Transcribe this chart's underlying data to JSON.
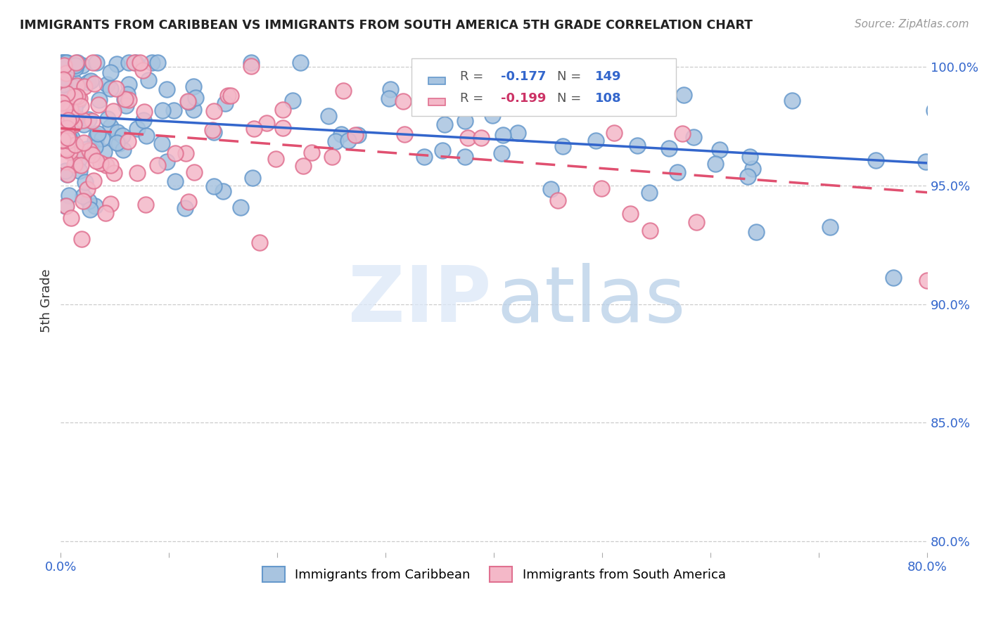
{
  "title": "IMMIGRANTS FROM CARIBBEAN VS IMMIGRANTS FROM SOUTH AMERICA 5TH GRADE CORRELATION CHART",
  "source": "Source: ZipAtlas.com",
  "ylabel": "5th Grade",
  "xlim": [
    0.0,
    0.8
  ],
  "ylim": [
    0.795,
    1.008
  ],
  "series1_color": "#a8c4e0",
  "series1_edgecolor": "#6699cc",
  "series2_color": "#f4b8c8",
  "series2_edgecolor": "#e07090",
  "trendline1_color": "#3366cc",
  "trendline2_color": "#e05070",
  "grid_color": "#cccccc",
  "legend_color1": "#3366cc",
  "legend_color2": "#cc3366",
  "legend_N_color": "#3366cc",
  "legend_R1_val": "-0.177",
  "legend_N1_val": "149",
  "legend_R2_val": "-0.199",
  "legend_N2_val": "108",
  "n_blue": 149,
  "n_pink": 108
}
